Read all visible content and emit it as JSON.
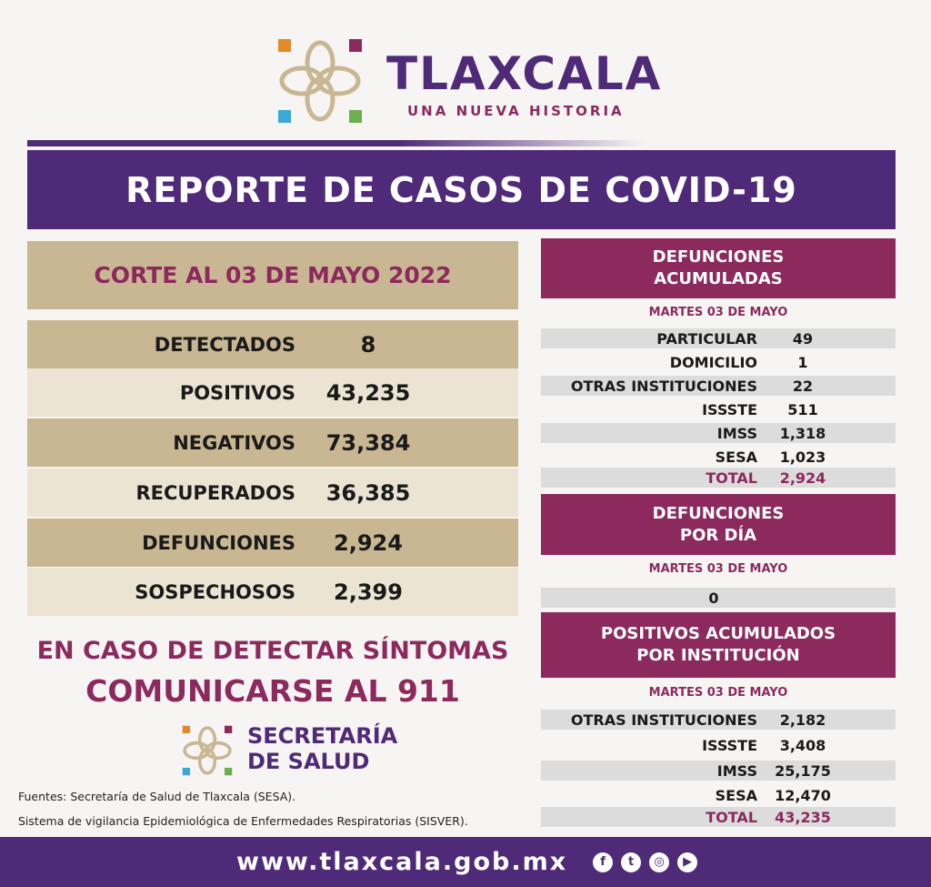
{
  "header": {
    "title": "TLAXCALA",
    "subtitle": "UNA NUEVA HISTORIA"
  },
  "banner": "REPORTE DE CASOS DE COVID-19",
  "summary": {
    "cut": "CORTE AL 03 DE MAYO 2022",
    "rows": [
      {
        "label": "DETECTADOS",
        "value": "8"
      },
      {
        "label": "POSITIVOS",
        "value": "43,235"
      },
      {
        "label": "NEGATIVOS",
        "value": "73,384"
      },
      {
        "label": "RECUPERADOS",
        "value": "36,385"
      },
      {
        "label": "DEFUNCIONES",
        "value": "2,924"
      },
      {
        "label": "SOSPECHOSOS",
        "value": "2,399"
      }
    ]
  },
  "defunciones_acumuladas": {
    "title1": "DEFUNCIONES",
    "title2": "ACUMULADAS",
    "date": "MARTES 03 DE MAYO",
    "rows": [
      {
        "label": "PARTICULAR",
        "value": "49"
      },
      {
        "label": "DOMICILIO",
        "value": "1"
      },
      {
        "label": "OTRAS INSTITUCIONES",
        "value": "22"
      },
      {
        "label": "ISSSTE",
        "value": "511"
      },
      {
        "label": "IMSS",
        "value": "1,318"
      },
      {
        "label": "SESA",
        "value": "1,023"
      },
      {
        "label": "TOTAL",
        "value": "2,924"
      }
    ]
  },
  "defunciones_dia": {
    "title1": "DEFUNCIONES",
    "title2": "POR DÍA",
    "date": "MARTES 03 DE MAYO",
    "value": "0"
  },
  "positivos": {
    "title1": "POSITIVOS ACUMULADOS",
    "title2": "POR INSTITUCIÓN",
    "date": "MARTES 03 DE MAYO",
    "rows": [
      {
        "label": "OTRAS INSTITUCIONES",
        "value": "2,182"
      },
      {
        "label": "ISSSTE",
        "value": "3,408"
      },
      {
        "label": "IMSS",
        "value": "25,175"
      },
      {
        "label": "SESA",
        "value": "12,470"
      },
      {
        "label": "TOTAL",
        "value": "43,235"
      }
    ]
  },
  "call": {
    "line1": "EN CASO DE DETECTAR SÍNTOMAS",
    "line2": "COMUNICARSE AL 911"
  },
  "secretaria": {
    "line1": "SECRETARÍA",
    "line2": "DE SALUD"
  },
  "sources": [
    "Fuentes:  Secretaría de Salud de Tlaxcala (SESA).",
    "Sistema de vigilancia Epidemiológica de Enfermedades Respiratorias (SISVER)."
  ],
  "footer": {
    "url": "www.tlaxcala.gob.mx",
    "social": [
      "facebook-icon",
      "twitter-icon",
      "instagram-icon",
      "youtube-icon"
    ]
  },
  "colors": {
    "purple": "#4f2a78",
    "magenta": "#8c2a5e",
    "tan": "#c9b793",
    "beige": "#ece4d3"
  }
}
